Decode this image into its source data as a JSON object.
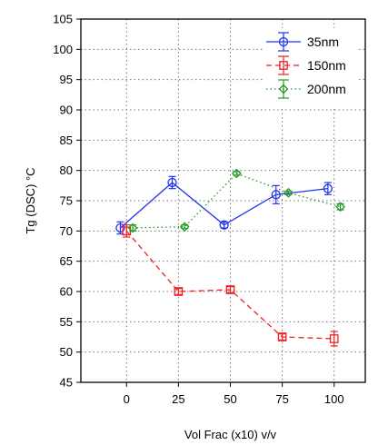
{
  "chart_data": {
    "type": "line",
    "xlabel": "Vol Frac (x10) v/v",
    "ylabel": "Tg (DSC) °C",
    "xlim": [
      -22,
      115
    ],
    "ylim": [
      45,
      105
    ],
    "xticks": [
      0,
      25,
      50,
      75,
      100
    ],
    "yticks": [
      45,
      50,
      55,
      60,
      65,
      70,
      75,
      80,
      85,
      90,
      95,
      100,
      105
    ],
    "grid": true,
    "legend_position": "top-right",
    "series": [
      {
        "name": "35nm",
        "color": "#2233ee",
        "line_style": "solid",
        "marker": "circle",
        "x": [
          -3,
          22,
          47,
          72,
          97
        ],
        "y": [
          70.5,
          78,
          71,
          76,
          77
        ],
        "err": [
          1,
          1,
          0.5,
          1.5,
          1
        ]
      },
      {
        "name": "150nm",
        "color": "#ee2222",
        "line_style": "dashed",
        "marker": "square",
        "x": [
          0,
          25,
          50,
          75,
          100
        ],
        "y": [
          70,
          60,
          60.3,
          52.5,
          52.2
        ],
        "err": [
          1,
          0.5,
          0.5,
          0.5,
          1.2
        ]
      },
      {
        "name": "200nm",
        "color": "#229922",
        "line_style": "dotted",
        "marker": "diamond",
        "x": [
          3,
          28,
          53,
          78,
          103
        ],
        "y": [
          70.5,
          70.7,
          79.5,
          76.3,
          74
        ],
        "err": [
          0.5,
          0.3,
          0.3,
          0.3,
          0.5
        ]
      }
    ]
  }
}
